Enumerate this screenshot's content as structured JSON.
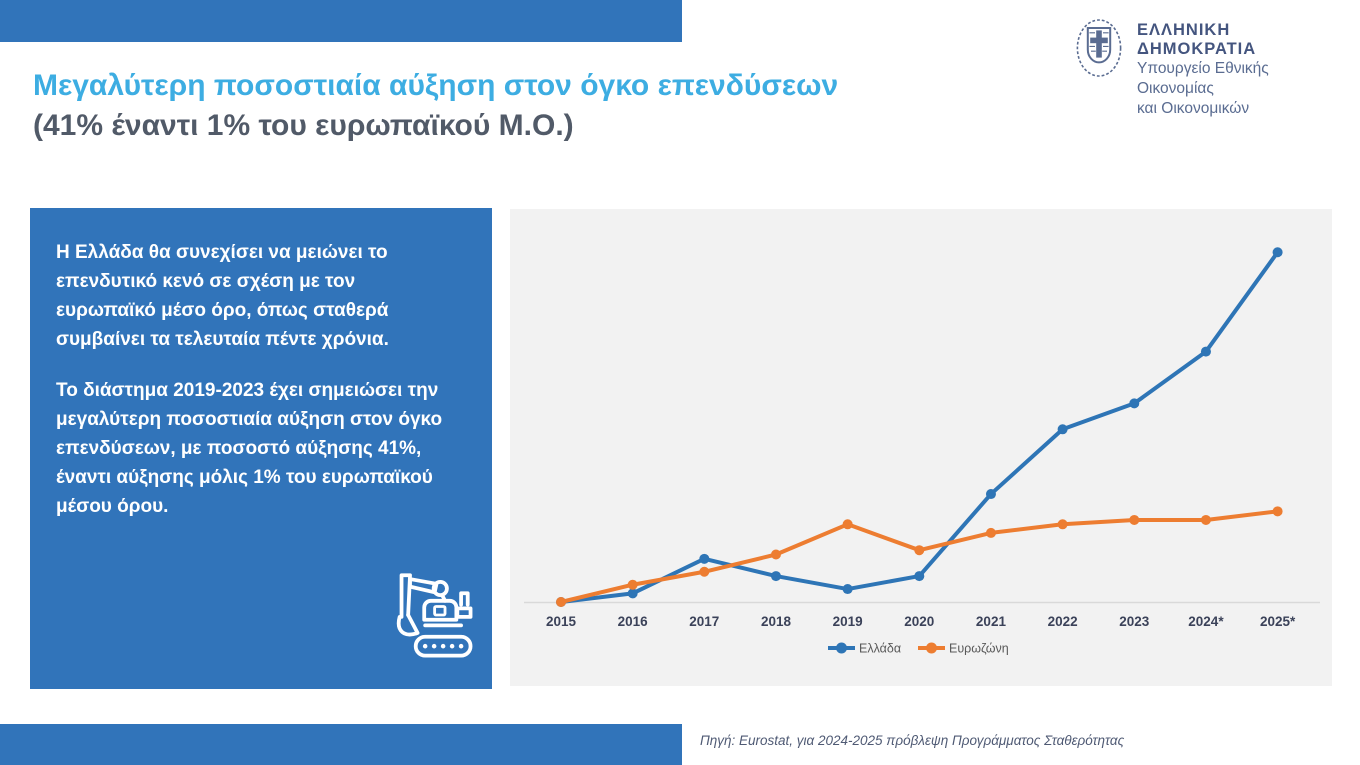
{
  "header": {
    "title_line1": "Μεγαλύτερη ποσοστιαία αύξηση στον όγκο επενδύσεων",
    "title_line2": "(41% έναντι 1% του ευρωπαϊκού Μ.Ο.)"
  },
  "logo": {
    "org": "ΕΛΛΗΝΙΚΗ ΔΗΜΟΚΡΑΤΙΑ",
    "ministry_line1": "Υπουργείο Εθνικής Οικονομίας",
    "ministry_line2": "και Οικονομικών",
    "emblem_icon": "greek-coat-of-arms-icon"
  },
  "info_panel": {
    "paragraph1": "Η Ελλάδα θα συνεχίσει να μειώνει το επενδυτικό κενό σε σχέση με τον ευρωπαϊκό μέσο όρο, όπως σταθερά συμβαίνει τα τελευταία πέντε χρόνια.",
    "paragraph2": "Το διάστημα 2019-2023 έχει σημειώσει την μεγαλύτερη ποσοστιαία αύξηση στον όγκο επενδύσεων, με ποσοστό αύξησης 41%, έναντι αύξησης μόλις 1% του ευρωπαϊκού μέσου όρου.",
    "icon": "excavator-icon"
  },
  "chart_data": {
    "type": "line",
    "title": "",
    "xlabel": "",
    "ylabel": "",
    "categories": [
      "2015",
      "2016",
      "2017",
      "2018",
      "2019",
      "2020",
      "2021",
      "2022",
      "2023",
      "2024*",
      "2025*"
    ],
    "series": [
      {
        "name": "Ελλάδα",
        "color": "#2E75B6",
        "values": [
          100,
          102,
          110,
          106,
          103,
          106,
          125,
          140,
          146,
          158,
          181
        ]
      },
      {
        "name": "Ευρωζώνη",
        "color": "#ED7D31",
        "values": [
          100,
          104,
          107,
          111,
          118,
          112,
          116,
          118,
          119,
          119,
          121
        ]
      }
    ],
    "ylim": [
      95,
      190
    ],
    "grid": false,
    "legend_position": "bottom",
    "background": "#F2F2F2"
  },
  "source": {
    "label": "Πηγή: Eurostat, για 2024-2025 πρόβλεψη Προγράμματος Σταθερότητας"
  },
  "colors": {
    "brand_blue": "#3174BA",
    "accent_light_blue": "#3DADE2",
    "title_dark": "#515A68",
    "chart_background": "#F2F2F2",
    "axis_line": "#D9D9D9",
    "tick_label": "#3B4259",
    "legend_text": "#595959",
    "source_text": "#4F5A74",
    "logo_blue": "#5A6C91",
    "greece_line": "#2E75B6",
    "eurozone_line": "#ED7D31"
  }
}
